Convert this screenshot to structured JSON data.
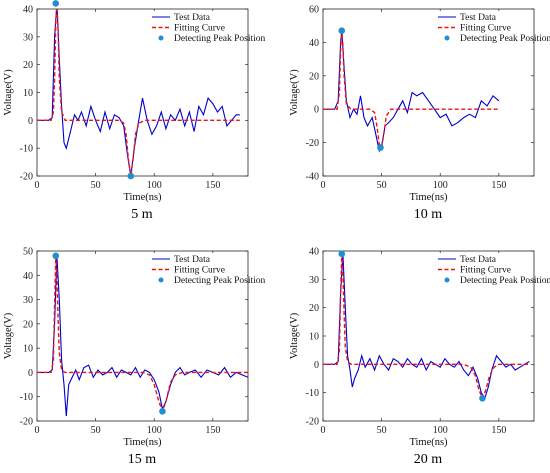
{
  "figure": {
    "legend": [
      "Test Data",
      "Fitting Curve",
      "Detecting Peak Position"
    ],
    "colors": {
      "test": "#0000cc",
      "fit": "#ee1111",
      "peak": "#1f8fcf"
    }
  },
  "chart_data": [
    {
      "type": "line",
      "caption": "5 m",
      "xlabel": "Time(ns)",
      "ylabel": "Voltage(V)",
      "xlim": [
        0,
        180
      ],
      "ylim": [
        -20,
        40
      ],
      "xticks": [
        0,
        50,
        100,
        150
      ],
      "yticks": [
        -20,
        -10,
        0,
        10,
        20,
        30,
        40
      ],
      "legend_position": "top-right",
      "series": [
        {
          "name": "Test Data",
          "x": [
            0,
            5,
            10,
            13,
            15,
            17,
            19,
            21,
            23,
            25,
            28,
            32,
            35,
            38,
            42,
            46,
            50,
            54,
            58,
            62,
            66,
            70,
            74,
            77,
            80,
            83,
            86,
            90,
            94,
            98,
            102,
            106,
            110,
            114,
            118,
            122,
            126,
            130,
            134,
            138,
            142,
            146,
            150,
            154,
            158,
            162,
            166,
            170,
            173
          ],
          "y": [
            0,
            0,
            0,
            1,
            30,
            42,
            22,
            5,
            -8,
            -10,
            -5,
            2,
            0,
            3,
            -2,
            5,
            0,
            -4,
            3,
            -3,
            2,
            1,
            -2,
            -12,
            -20,
            -10,
            -2,
            8,
            0,
            -5,
            -2,
            3,
            -3,
            2,
            0,
            4,
            -2,
            3,
            -4,
            5,
            2,
            8,
            6,
            3,
            5,
            -2,
            0,
            2,
            2
          ]
        },
        {
          "name": "Fitting Curve",
          "x": [
            0,
            12,
            14,
            15,
            16,
            17,
            18,
            19,
            21,
            24,
            28,
            40,
            60,
            70,
            74,
            76,
            78,
            80,
            82,
            84,
            87,
            92,
            110,
            140,
            173
          ],
          "y": [
            0,
            0,
            3,
            15,
            35,
            42,
            33,
            15,
            3,
            0,
            0,
            0,
            0,
            0,
            -1,
            -5,
            -14,
            -20,
            -14,
            -5,
            -1,
            0,
            0,
            0,
            0
          ]
        },
        {
          "name": "Detecting Peak Position",
          "x": [
            16,
            80
          ],
          "y": [
            42,
            -20
          ]
        }
      ]
    },
    {
      "type": "line",
      "caption": "10 m",
      "xlabel": "Time(ns)",
      "ylabel": "Voltage(V)",
      "xlim": [
        0,
        180
      ],
      "ylim": [
        -40,
        60
      ],
      "xticks": [
        0,
        50,
        100,
        150
      ],
      "yticks": [
        -40,
        -20,
        0,
        20,
        40,
        60
      ],
      "legend_position": "top-right",
      "series": [
        {
          "name": "Test Data",
          "x": [
            0,
            5,
            10,
            13,
            15,
            16,
            18,
            20,
            23,
            26,
            29,
            32,
            35,
            38,
            42,
            45,
            48,
            50,
            53,
            56,
            60,
            64,
            68,
            72,
            76,
            80,
            85,
            90,
            95,
            100,
            105,
            110,
            115,
            120,
            125,
            130,
            135,
            140,
            145,
            150
          ],
          "y": [
            0,
            0,
            0,
            5,
            40,
            47,
            25,
            5,
            -5,
            0,
            -3,
            8,
            -5,
            -10,
            -5,
            -15,
            -25,
            -22,
            -10,
            -8,
            -5,
            0,
            5,
            -2,
            10,
            8,
            10,
            5,
            0,
            -5,
            -3,
            -10,
            -8,
            -5,
            -3,
            -5,
            5,
            2,
            8,
            5
          ]
        },
        {
          "name": "Fitting Curve",
          "x": [
            0,
            12,
            14,
            15,
            16,
            17,
            18,
            20,
            24,
            30,
            40,
            44,
            46,
            48,
            50,
            52,
            54,
            58,
            70,
            100,
            150
          ],
          "y": [
            0,
            0,
            10,
            35,
            47,
            38,
            20,
            3,
            0,
            0,
            0,
            -2,
            -10,
            -21,
            -23,
            -14,
            -4,
            0,
            0,
            0,
            0
          ]
        },
        {
          "name": "Detecting Peak Position",
          "x": [
            16,
            49
          ],
          "y": [
            47,
            -23
          ]
        }
      ]
    },
    {
      "type": "line",
      "caption": "15 m",
      "xlabel": "Time(ns)",
      "ylabel": "Voltage(V)",
      "xlim": [
        0,
        180
      ],
      "ylim": [
        -20,
        50
      ],
      "xticks": [
        0,
        50,
        100,
        150
      ],
      "yticks": [
        -20,
        -10,
        0,
        10,
        20,
        30,
        40,
        50
      ],
      "legend_position": "top-right",
      "series": [
        {
          "name": "Test Data",
          "x": [
            0,
            5,
            10,
            13,
            15,
            17,
            19,
            21,
            23,
            25,
            27,
            30,
            33,
            36,
            40,
            44,
            48,
            52,
            56,
            60,
            64,
            68,
            72,
            76,
            80,
            84,
            88,
            92,
            96,
            100,
            104,
            107,
            110,
            114,
            118,
            122,
            126,
            130,
            135,
            140,
            145,
            150,
            155,
            160,
            165,
            170,
            175,
            180
          ],
          "y": [
            0,
            0,
            0,
            1,
            20,
            48,
            30,
            5,
            -5,
            -18,
            -5,
            -2,
            1,
            -3,
            2,
            3,
            -2,
            1,
            -1,
            0,
            2,
            -2,
            1,
            0,
            -1,
            2,
            -2,
            1,
            0,
            -3,
            -8,
            -15,
            -12,
            -5,
            0,
            2,
            -1,
            0,
            1,
            -2,
            1,
            0,
            -1,
            2,
            -2,
            0,
            -1,
            -2
          ]
        },
        {
          "name": "Fitting Curve",
          "x": [
            0,
            12,
            14,
            15,
            16,
            17,
            18,
            19,
            21,
            24,
            30,
            60,
            90,
            96,
            100,
            104,
            107,
            110,
            114,
            118,
            124,
            150,
            180
          ],
          "y": [
            0,
            0,
            5,
            28,
            48,
            40,
            22,
            8,
            1,
            0,
            0,
            0,
            0,
            -1,
            -5,
            -12,
            -16,
            -12,
            -4,
            -1,
            0,
            0,
            0
          ]
        },
        {
          "name": "Detecting Peak Position",
          "x": [
            16,
            107
          ],
          "y": [
            48,
            -16
          ]
        }
      ]
    },
    {
      "type": "line",
      "caption": "20 m",
      "xlabel": "Time(ns)",
      "ylabel": "Voltage(V)",
      "xlim": [
        0,
        180
      ],
      "ylim": [
        -20,
        40
      ],
      "xticks": [
        0,
        50,
        100,
        150
      ],
      "yticks": [
        -20,
        -10,
        0,
        10,
        20,
        30,
        40
      ],
      "legend_position": "top-right",
      "series": [
        {
          "name": "Test Data",
          "x": [
            0,
            5,
            10,
            13,
            15,
            17,
            19,
            21,
            23,
            25,
            27,
            30,
            33,
            36,
            40,
            44,
            48,
            52,
            56,
            60,
            64,
            68,
            72,
            76,
            80,
            84,
            88,
            92,
            96,
            100,
            104,
            108,
            112,
            116,
            120,
            124,
            128,
            132,
            135,
            138,
            141,
            144,
            148,
            152,
            156,
            160,
            164,
            168,
            172,
            176
          ],
          "y": [
            0,
            0,
            0,
            1,
            25,
            39,
            20,
            3,
            -2,
            -8,
            -5,
            -2,
            3,
            -1,
            2,
            -2,
            3,
            0,
            -2,
            2,
            1,
            -1,
            2,
            0,
            -1,
            2,
            -2,
            1,
            0,
            -1,
            2,
            0,
            -1,
            1,
            -2,
            -4,
            -1,
            -5,
            -10,
            -12,
            -8,
            -2,
            3,
            1,
            -1,
            0,
            -2,
            -1,
            0,
            1
          ]
        },
        {
          "name": "Fitting Curve",
          "x": [
            0,
            12,
            14,
            15,
            16,
            17,
            18,
            19,
            21,
            24,
            30,
            60,
            100,
            120,
            126,
            130,
            133,
            136,
            139,
            142,
            146,
            150,
            176
          ],
          "y": [
            0,
            0,
            5,
            25,
            39,
            32,
            18,
            6,
            1,
            0,
            0,
            0,
            0,
            0,
            -1,
            -4,
            -9,
            -12,
            -9,
            -4,
            -1,
            0,
            0
          ]
        },
        {
          "name": "Detecting Peak Position",
          "x": [
            16,
            136
          ],
          "y": [
            39,
            -12
          ]
        }
      ]
    }
  ]
}
